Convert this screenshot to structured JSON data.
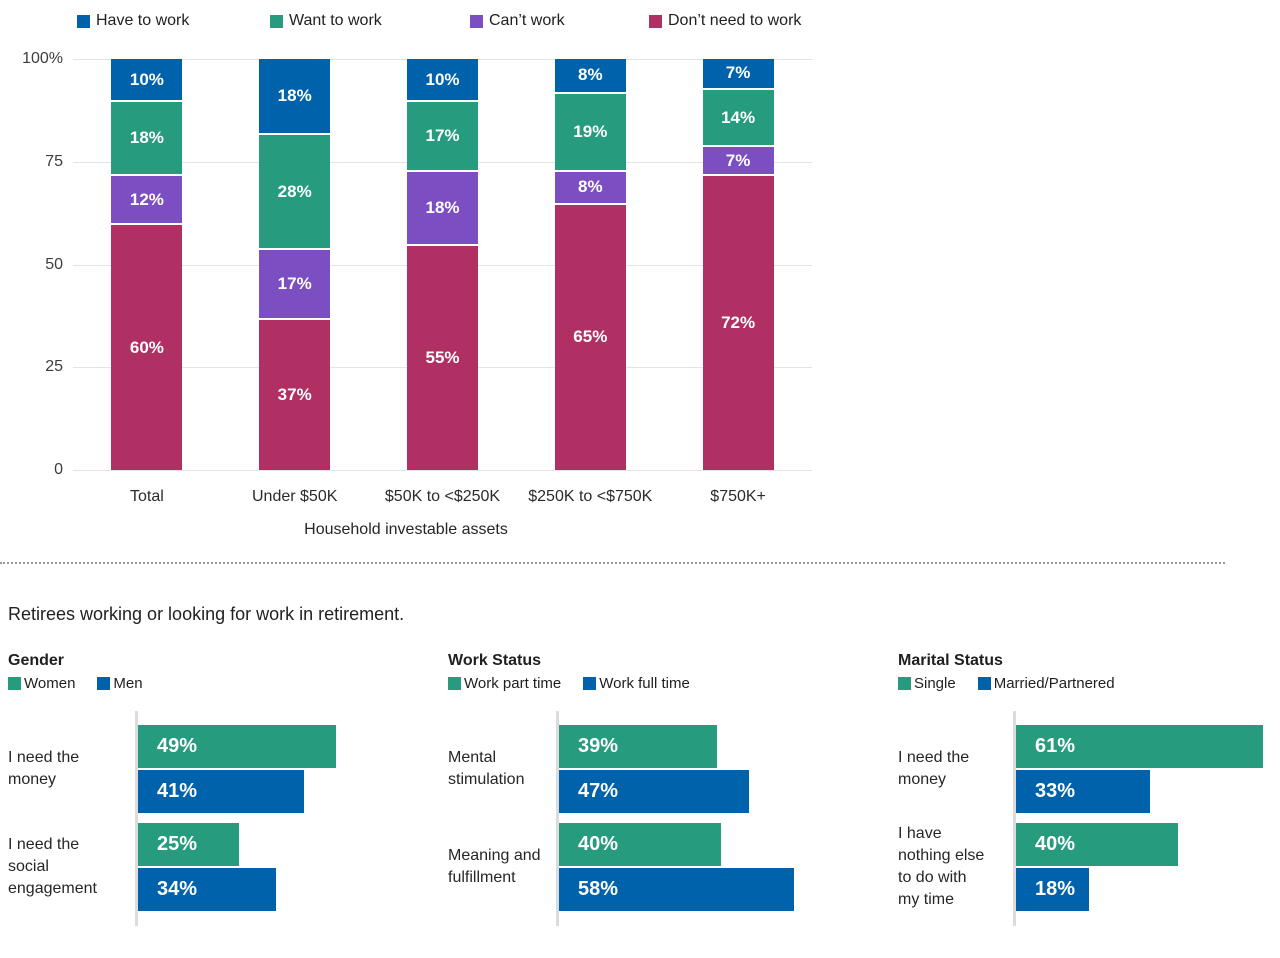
{
  "section_title": "Retirees working or looking for work in retirement.",
  "colors": {
    "blue": "#0062AA",
    "green": "#269B7D",
    "purple": "#7B4EC1",
    "crimson": "#B03064",
    "grid": "#E4E4E4",
    "mini_axis": "#DCDCDC",
    "divider": "#9A9A9A",
    "text": "#262626"
  },
  "chart_data": [
    {
      "type": "bar",
      "stacked": true,
      "orientation": "vertical",
      "legend_position": "top",
      "grid": "horizontal",
      "ylim": [
        0,
        100
      ],
      "y_ticks": [
        "100%",
        "75",
        "50",
        "25",
        "0"
      ],
      "xlabel": "Household investable assets",
      "value_suffix": "%",
      "categories": [
        "Total",
        "Under $50K",
        "$50K to <$250K",
        "$250K to <$750K",
        "$750K+"
      ],
      "series": [
        {
          "name": "Have to work",
          "color_key": "blue",
          "values": [
            10,
            18,
            10,
            8,
            7
          ]
        },
        {
          "name": "Want to work",
          "color_key": "green",
          "values": [
            18,
            28,
            17,
            19,
            14
          ]
        },
        {
          "name": "Can’t work",
          "color_key": "purple",
          "values": [
            12,
            17,
            18,
            8,
            7
          ]
        },
        {
          "name": "Don’t need to work",
          "color_key": "crimson",
          "values": [
            60,
            37,
            55,
            65,
            72
          ]
        }
      ]
    },
    {
      "type": "bar",
      "orientation": "horizontal",
      "title": "Gender",
      "value_suffix": "%",
      "legend": [
        {
          "name": "Women",
          "color_key": "green"
        },
        {
          "name": "Men",
          "color_key": "blue"
        }
      ],
      "rows": [
        {
          "category_lines": [
            "I need the",
            "money"
          ],
          "values": [
            49,
            41
          ]
        },
        {
          "category_lines": [
            "I need the",
            "social",
            "engagement"
          ],
          "values": [
            25,
            34
          ]
        }
      ]
    },
    {
      "type": "bar",
      "orientation": "horizontal",
      "title": "Work Status",
      "value_suffix": "%",
      "legend": [
        {
          "name": "Work part time",
          "color_key": "green"
        },
        {
          "name": "Work full time",
          "color_key": "blue"
        }
      ],
      "rows": [
        {
          "category_lines": [
            "Mental",
            "stimulation"
          ],
          "values": [
            39,
            47
          ]
        },
        {
          "category_lines": [
            "Meaning and",
            "fulfillment"
          ],
          "values": [
            40,
            58
          ]
        }
      ]
    },
    {
      "type": "bar",
      "orientation": "horizontal",
      "title": "Marital Status",
      "value_suffix": "%",
      "legend": [
        {
          "name": "Single",
          "color_key": "green"
        },
        {
          "name": "Married/Partnered",
          "color_key": "blue"
        }
      ],
      "rows": [
        {
          "category_lines": [
            "I need the",
            "money"
          ],
          "values": [
            61,
            33
          ]
        },
        {
          "category_lines": [
            "I have",
            "nothing else",
            "to do with",
            "my time"
          ],
          "values": [
            40,
            18
          ]
        }
      ]
    }
  ]
}
